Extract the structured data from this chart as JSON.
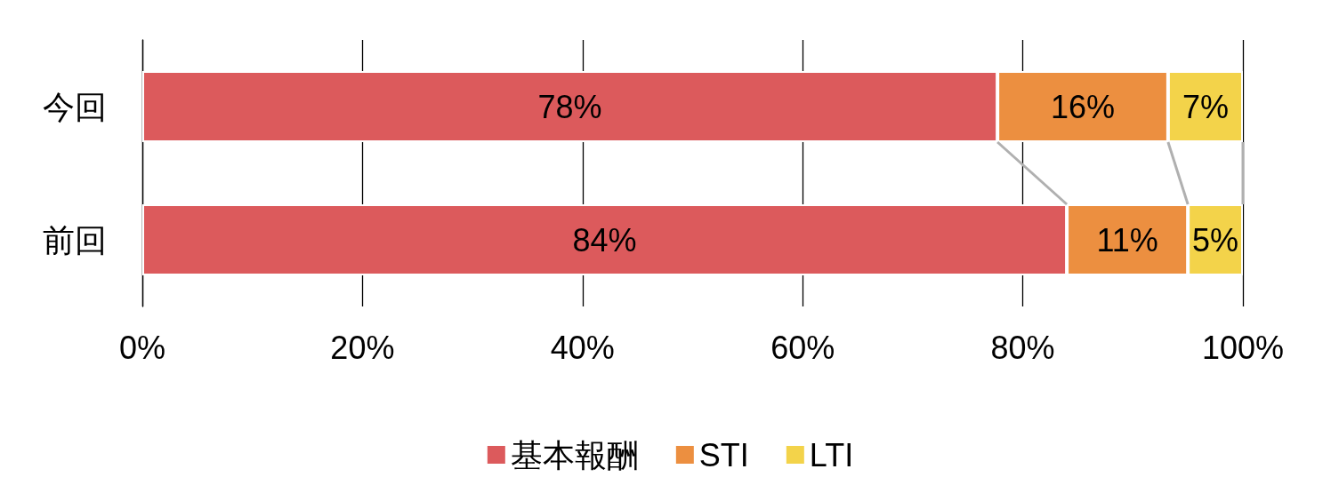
{
  "chart_data": {
    "type": "bar",
    "orientation": "horizontal",
    "stacked": true,
    "categories": [
      "今回",
      "前回"
    ],
    "series": [
      {
        "name": "基本報酬",
        "color": "#dc5a5c",
        "values": [
          77.7,
          84
        ],
        "value_labels": [
          "78%",
          "84%"
        ]
      },
      {
        "name": "STI",
        "color": "#ec8f40",
        "values": [
          15.5,
          11
        ],
        "value_labels": [
          "16%",
          "11%"
        ]
      },
      {
        "name": "LTI",
        "color": "#f3d34a",
        "values": [
          6.8,
          5
        ],
        "value_labels": [
          "7%",
          "5%"
        ]
      }
    ],
    "xlim": [
      0,
      100
    ],
    "xticks": [
      {
        "value": 0,
        "label": "0%"
      },
      {
        "value": 20,
        "label": "20%"
      },
      {
        "value": 40,
        "label": "40%"
      },
      {
        "value": 60,
        "label": "60%"
      },
      {
        "value": 80,
        "label": "80%"
      },
      {
        "value": 100,
        "label": "100%"
      }
    ],
    "grid": "x",
    "legend": "bottom"
  }
}
